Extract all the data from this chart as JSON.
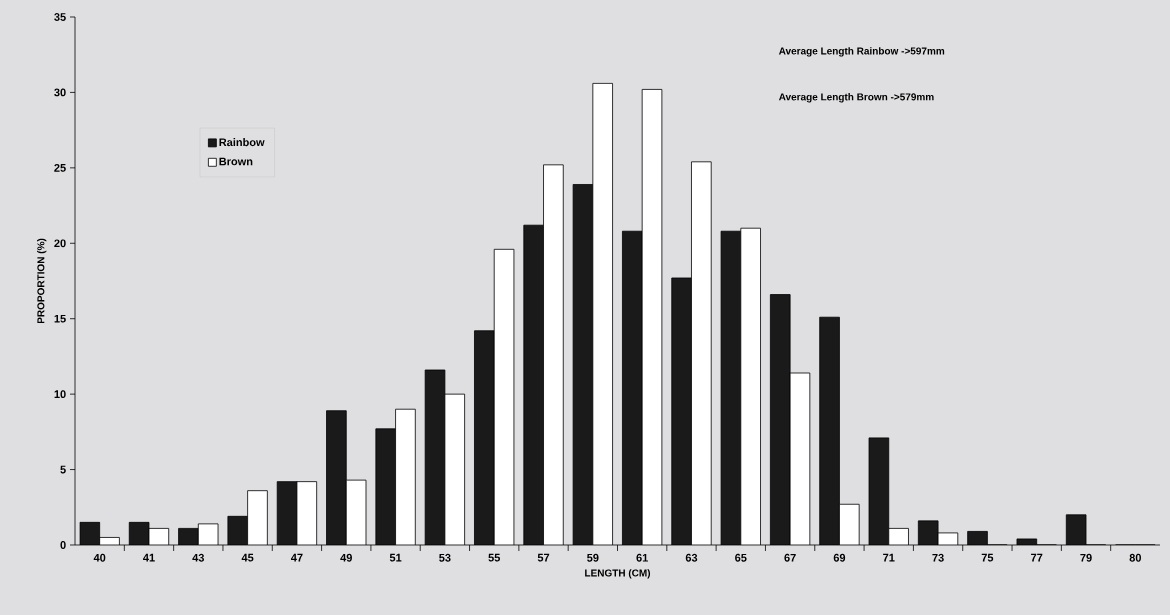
{
  "chart_data": {
    "type": "bar",
    "xlabel": "LENGTH (CM)",
    "ylabel": "PROPORTION (%)",
    "categories": [
      "40",
      "41",
      "43",
      "45",
      "47",
      "49",
      "51",
      "53",
      "55",
      "57",
      "59",
      "61",
      "63",
      "65",
      "67",
      "69",
      "71",
      "73",
      "75",
      "77",
      "79",
      "80"
    ],
    "series": [
      {
        "name": "Rainbow",
        "color": "#1a1a1a",
        "values": [
          1.5,
          1.5,
          1.1,
          1.9,
          4.2,
          8.9,
          7.7,
          11.6,
          14.2,
          21.2,
          23.9,
          20.8,
          17.7,
          20.8,
          16.6,
          15.1,
          7.1,
          1.6,
          0.9,
          0.4,
          2.0,
          0
        ]
      },
      {
        "name": "Brown",
        "color": "#ffffff",
        "values": [
          0.5,
          1.1,
          1.4,
          3.6,
          4.2,
          4.3,
          9.0,
          10.0,
          19.6,
          25.2,
          30.6,
          30.2,
          25.4,
          21.0,
          11.4,
          2.7,
          1.1,
          0.8,
          0,
          0,
          0,
          0
        ]
      }
    ],
    "ylim": [
      0,
      35
    ],
    "yticks": [
      0,
      5,
      10,
      15,
      20,
      25,
      30,
      35
    ],
    "legend": "top left",
    "grid": false,
    "annotations": [
      "Average Length Rainbow ->597mm",
      "Average Length Brown ->579mm"
    ]
  }
}
